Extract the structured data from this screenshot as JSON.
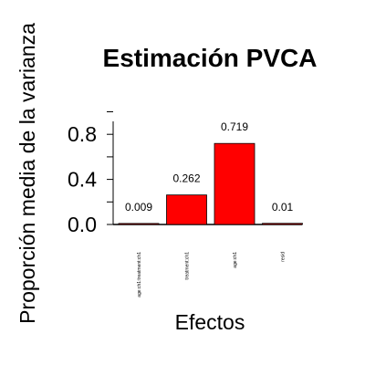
{
  "chart_data": {
    "type": "bar",
    "title": "Estimación PVCA",
    "xlabel": "Efectos",
    "ylabel": "Proporción media de la varianza",
    "categories": [
      "age:ch1:treatment:ch1",
      "treatment:ch1",
      "age:ch1",
      "resid"
    ],
    "values": [
      0.009,
      0.262,
      0.719,
      0.01
    ],
    "value_labels": [
      "0.009",
      "0.262",
      "0.719",
      "0.01"
    ],
    "yticks": [
      "0.0",
      "0.4",
      "0.8"
    ],
    "ylim": [
      0,
      1.0
    ],
    "bar_color": "#ff0000",
    "grid": false,
    "legend": "none"
  }
}
